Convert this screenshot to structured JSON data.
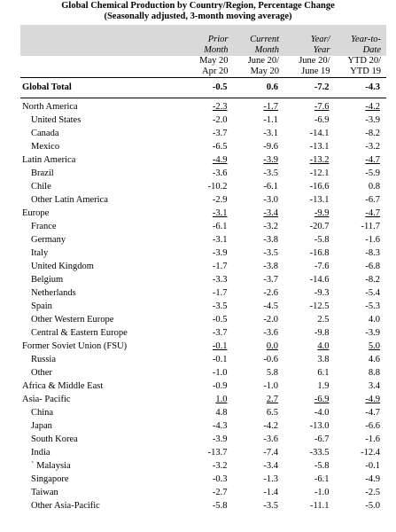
{
  "title_line1": "Global Chemical Production by Country/Region, Percentage Change",
  "title_line2": "(Seasonally adjusted, 3-month moving average)",
  "columns": [
    {
      "h1": "Prior",
      "h2": "Month",
      "d1": "May 20",
      "d2": "Apr 20"
    },
    {
      "h1": "Current",
      "h2": "Month",
      "d1": "June 20/",
      "d2": "May 20"
    },
    {
      "h1": "Year/",
      "h2": "Year",
      "d1": "June 20/",
      "d2": "June 19"
    },
    {
      "h1": "Year-to-",
      "h2": "Date",
      "d1": "YTD 20/",
      "d2": "YTD 19"
    }
  ],
  "global_total": {
    "label": "Global Total",
    "values": [
      "-0.5",
      "0.6",
      "-7.2",
      "-4.3"
    ]
  },
  "rows": [
    {
      "label": "North America",
      "values": [
        "-2.3",
        "-1.7",
        "-7.6",
        "-4.2"
      ],
      "region": true
    },
    {
      "label": "United States",
      "values": [
        "-2.0",
        "-1.1",
        "-6.9",
        "-3.9"
      ]
    },
    {
      "label": "Canada",
      "values": [
        "-3.7",
        "-3.1",
        "-14.1",
        "-8.2"
      ]
    },
    {
      "label": "Mexico",
      "values": [
        "-6.5",
        "-9.6",
        "-13.1",
        "-3.2"
      ]
    },
    {
      "label": "Latin America",
      "values": [
        "-4.9",
        "-3.9",
        "-13.2",
        "-4.7"
      ],
      "region": true
    },
    {
      "label": "Brazil",
      "values": [
        "-3.6",
        "-3.5",
        "-12.1",
        "-5.9"
      ]
    },
    {
      "label": "Chile",
      "values": [
        "-10.2",
        "-6.1",
        "-16.6",
        "0.8"
      ]
    },
    {
      "label": "Other Latin America",
      "values": [
        "-2.9",
        "-3.0",
        "-13.1",
        "-6.7"
      ]
    },
    {
      "label": "Europe",
      "values": [
        "-3.1",
        "-3.4",
        "-9.9",
        "-4.7"
      ],
      "region": true
    },
    {
      "label": "France",
      "values": [
        "-6.1",
        "-3.2",
        "-20.7",
        "-11.7"
      ]
    },
    {
      "label": "Germany",
      "values": [
        "-3.1",
        "-3.8",
        "-5.8",
        "-1.6"
      ]
    },
    {
      "label": "Italy",
      "values": [
        "-3.9",
        "-3.5",
        "-16.8",
        "-8.3"
      ]
    },
    {
      "label": "United Kingdom",
      "values": [
        "-1.7",
        "-3.8",
        "-7.6",
        "-6.8"
      ]
    },
    {
      "label": "Belgium",
      "values": [
        "-3.3",
        "-3.7",
        "-14.6",
        "-8.2"
      ]
    },
    {
      "label": "Netherlands",
      "values": [
        "-1.7",
        "-2.6",
        "-9.3",
        "-5.4"
      ]
    },
    {
      "label": "Spain",
      "values": [
        "-3.5",
        "-4.5",
        "-12.5",
        "-5.3"
      ]
    },
    {
      "label": "Other Western Europe",
      "values": [
        "-0.5",
        "-2.0",
        "2.5",
        "4.0"
      ]
    },
    {
      "label": "Central & Eastern Europe",
      "values": [
        "-3.7",
        "-3.6",
        "-9.8",
        "-3.9"
      ]
    },
    {
      "label": "Former Soviet Union (FSU)",
      "values": [
        "-0.1",
        "0.0",
        "4.0",
        "5.0"
      ],
      "region": true
    },
    {
      "label": "Russia",
      "values": [
        "-0.1",
        "-0.6",
        "3.8",
        "4.6"
      ]
    },
    {
      "label": "Other",
      "values": [
        "-1.0",
        "5.8",
        "6.1",
        "8.8"
      ]
    },
    {
      "label": "Africa & Middle East",
      "values": [
        "-0.9",
        "-1.0",
        "1.9",
        "3.4"
      ],
      "region": true,
      "plain": true
    },
    {
      "label": "Asia- Pacific",
      "values": [
        "1.0",
        "2.7",
        "-6.9",
        "-4.9"
      ],
      "region": true
    },
    {
      "label": "China",
      "values": [
        "4.8",
        "6.5",
        "-4.0",
        "-4.7"
      ]
    },
    {
      "label": "Japan",
      "values": [
        "-4.3",
        "-4.2",
        "-13.0",
        "-6.6"
      ]
    },
    {
      "label": "South Korea",
      "values": [
        "-3.9",
        "-3.6",
        "-6.7",
        "-1.6"
      ]
    },
    {
      "label": "India",
      "values": [
        "-13.7",
        "-7.4",
        "-33.5",
        "-12.4"
      ]
    },
    {
      "label": "` Malaysia",
      "values": [
        "-3.2",
        "-3.4",
        "-5.8",
        "-0.1"
      ]
    },
    {
      "label": "Singapore",
      "values": [
        "-0.3",
        "-1.3",
        "-6.1",
        "-4.9"
      ]
    },
    {
      "label": "Taiwan",
      "values": [
        "-2.7",
        "-1.4",
        "-1.0",
        "-2.5"
      ]
    },
    {
      "label": "Other Asia-Pacific",
      "values": [
        "-5.8",
        "-3.5",
        "-11.1",
        "-5.0"
      ]
    }
  ]
}
